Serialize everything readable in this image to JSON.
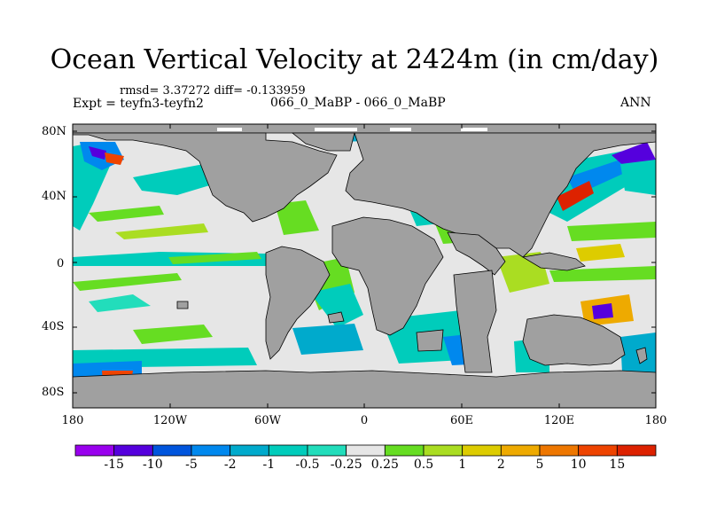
{
  "title": "Ocean Vertical Velocity at 2424m (in cm/day)",
  "stats": "rmsd= 3.37272 diff= -0.133959",
  "expt": "Expt = teyfn3-teyfn2",
  "center_label": "066_0_MaBP - 066_0_MaBP",
  "season": "ANN",
  "lat_labels": [
    "80N",
    "40N",
    "0",
    "40S",
    "80S"
  ],
  "lon_labels": [
    "180",
    "120W",
    "60W",
    "0",
    "60E",
    "120E",
    "180"
  ],
  "colorbar": {
    "labels": [
      "-15",
      "-10",
      "-5",
      "-2",
      "-1",
      "-0.5",
      "-0.25",
      "0.25",
      "0.5",
      "1",
      "2",
      "5",
      "10",
      "15"
    ],
    "colors": [
      "#9900ee",
      "#5500dd",
      "#0055dd",
      "#0088ee",
      "#00aacc",
      "#00ccbb",
      "#22ddbb",
      "#e6e6e6",
      "#66dd22",
      "#aadd22",
      "#ddcc00",
      "#eeaa00",
      "#ee7700",
      "#ee4400",
      "#dd2200"
    ]
  },
  "map_colors": {
    "ocean": "#e6e6e6",
    "land": "#a0a0a0"
  }
}
